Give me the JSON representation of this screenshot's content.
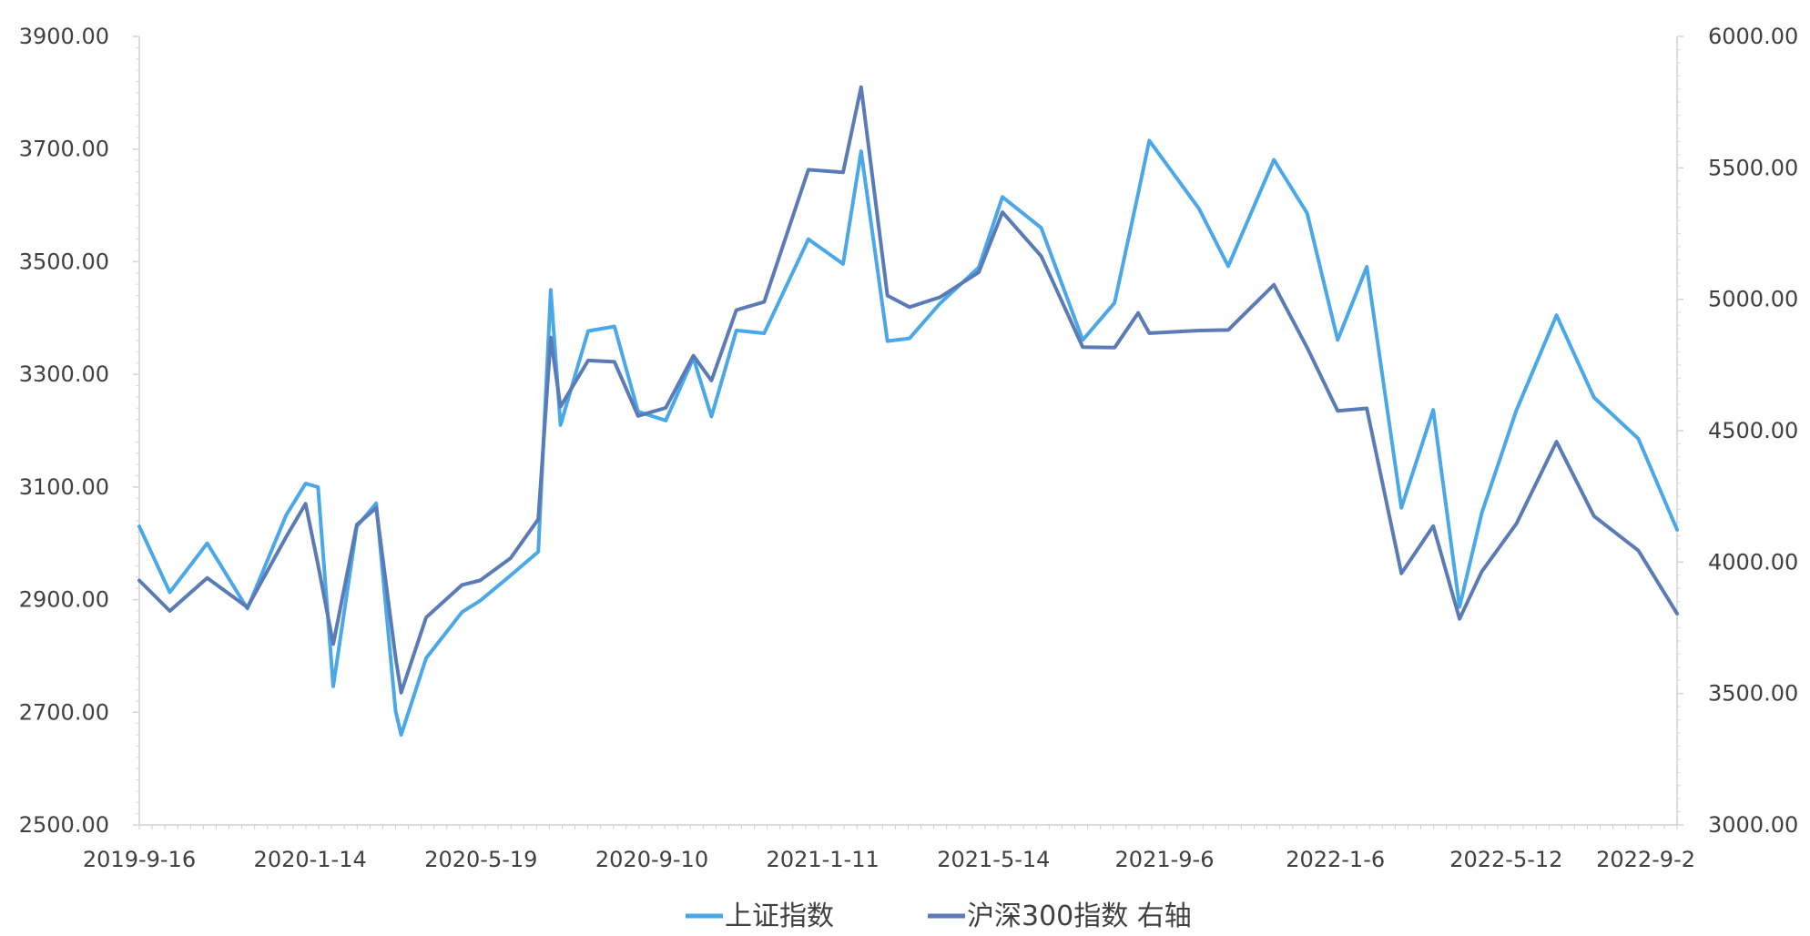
{
  "chart_data": {
    "type": "line",
    "x_labels": [
      "2019-9-16",
      "2020-1-14",
      "2020-5-19",
      "2020-9-10",
      "2021-1-11",
      "2021-5-14",
      "2021-9-6",
      "2022-1-6",
      "2022-5-12",
      "2022-9-2"
    ],
    "y_left": {
      "min": 2500,
      "max": 3900,
      "ticks": [
        "3900.00",
        "3700.00",
        "3500.00",
        "3300.00",
        "3100.00",
        "2900.00",
        "2700.00",
        "2500.00"
      ]
    },
    "y_right": {
      "min": 3000,
      "max": 6000,
      "ticks": [
        "6000.00",
        "5500.00",
        "5000.00",
        "4500.00",
        "4000.00",
        "3500.00",
        "3000.00"
      ]
    },
    "x_range": [
      "2019-09-16",
      "2022-09-30"
    ],
    "grid": false,
    "legend_position": "bottom",
    "series": [
      {
        "name": "上证指数",
        "axis": "left",
        "color": "#4aa8e8",
        "points": [
          [
            "2019-09-16",
            3030
          ],
          [
            "2019-10-08",
            2913
          ],
          [
            "2019-11-04",
            3000
          ],
          [
            "2019-12-03",
            2884
          ],
          [
            "2019-12-31",
            3050
          ],
          [
            "2020-01-14",
            3106
          ],
          [
            "2020-01-23",
            3100
          ],
          [
            "2020-02-03",
            2746
          ],
          [
            "2020-02-20",
            3030
          ],
          [
            "2020-03-05",
            3071
          ],
          [
            "2020-03-19",
            2702
          ],
          [
            "2020-03-23",
            2660
          ],
          [
            "2020-04-10",
            2796
          ],
          [
            "2020-05-06",
            2878
          ],
          [
            "2020-05-19",
            2898
          ],
          [
            "2020-06-10",
            2943
          ],
          [
            "2020-06-30",
            2985
          ],
          [
            "2020-07-09",
            3450
          ],
          [
            "2020-07-16",
            3210
          ],
          [
            "2020-08-05",
            3377
          ],
          [
            "2020-08-24",
            3385
          ],
          [
            "2020-09-10",
            3234
          ],
          [
            "2020-09-30",
            3218
          ],
          [
            "2020-10-20",
            3329
          ],
          [
            "2020-11-02",
            3225
          ],
          [
            "2020-11-20",
            3378
          ],
          [
            "2020-12-10",
            3373
          ],
          [
            "2021-01-11",
            3540
          ],
          [
            "2021-02-05",
            3496
          ],
          [
            "2021-02-18",
            3696
          ],
          [
            "2021-03-09",
            3359
          ],
          [
            "2021-03-25",
            3364
          ],
          [
            "2021-04-16",
            3426
          ],
          [
            "2021-05-14",
            3490
          ],
          [
            "2021-05-31",
            3615
          ],
          [
            "2021-06-28",
            3560
          ],
          [
            "2021-07-28",
            3361
          ],
          [
            "2021-08-20",
            3427
          ],
          [
            "2021-09-06",
            3621
          ],
          [
            "2021-09-14",
            3715
          ],
          [
            "2021-10-20",
            3594
          ],
          [
            "2021-11-10",
            3492
          ],
          [
            "2021-12-13",
            3681
          ],
          [
            "2022-01-06",
            3586
          ],
          [
            "2022-01-28",
            3361
          ],
          [
            "2022-02-18",
            3491
          ],
          [
            "2022-03-15",
            3063
          ],
          [
            "2022-04-07",
            3237
          ],
          [
            "2022-04-26",
            2887
          ],
          [
            "2022-05-12",
            3054
          ],
          [
            "2022-06-06",
            3236
          ],
          [
            "2022-07-05",
            3405
          ],
          [
            "2022-08-01",
            3259
          ],
          [
            "2022-09-02",
            3186
          ],
          [
            "2022-09-30",
            3024
          ]
        ]
      },
      {
        "name": "沪深300指数 右轴",
        "axis": "right",
        "color": "#5a7bb5",
        "points": [
          [
            "2019-09-16",
            3930
          ],
          [
            "2019-10-08",
            3814
          ],
          [
            "2019-11-04",
            3940
          ],
          [
            "2019-12-03",
            3828
          ],
          [
            "2019-12-31",
            4096
          ],
          [
            "2020-01-14",
            4222
          ],
          [
            "2020-01-23",
            3990
          ],
          [
            "2020-02-03",
            3688
          ],
          [
            "2020-02-20",
            4142
          ],
          [
            "2020-03-05",
            4206
          ],
          [
            "2020-03-19",
            3637
          ],
          [
            "2020-03-23",
            3503
          ],
          [
            "2020-04-10",
            3789
          ],
          [
            "2020-05-06",
            3913
          ],
          [
            "2020-05-19",
            3930
          ],
          [
            "2020-06-10",
            4015
          ],
          [
            "2020-06-30",
            4163
          ],
          [
            "2020-07-09",
            4854
          ],
          [
            "2020-07-16",
            4591
          ],
          [
            "2020-08-05",
            4767
          ],
          [
            "2020-08-24",
            4762
          ],
          [
            "2020-09-10",
            4556
          ],
          [
            "2020-09-30",
            4587
          ],
          [
            "2020-10-20",
            4785
          ],
          [
            "2020-11-02",
            4691
          ],
          [
            "2020-11-20",
            4959
          ],
          [
            "2020-12-10",
            4990
          ],
          [
            "2021-01-11",
            5493
          ],
          [
            "2021-02-05",
            5483
          ],
          [
            "2021-02-18",
            5807
          ],
          [
            "2021-03-09",
            5014
          ],
          [
            "2021-03-25",
            4970
          ],
          [
            "2021-04-16",
            5008
          ],
          [
            "2021-05-14",
            5103
          ],
          [
            "2021-05-31",
            5331
          ],
          [
            "2021-06-28",
            5164
          ],
          [
            "2021-07-28",
            4818
          ],
          [
            "2021-08-20",
            4816
          ],
          [
            "2021-09-06",
            4948
          ],
          [
            "2021-09-14",
            4871
          ],
          [
            "2021-10-20",
            4881
          ],
          [
            "2021-11-10",
            4883
          ],
          [
            "2021-12-13",
            5055
          ],
          [
            "2022-01-06",
            4816
          ],
          [
            "2022-01-28",
            4575
          ],
          [
            "2022-02-18",
            4585
          ],
          [
            "2022-03-15",
            3957
          ],
          [
            "2022-04-07",
            4137
          ],
          [
            "2022-04-26",
            3784
          ],
          [
            "2022-05-12",
            3964
          ],
          [
            "2022-06-06",
            4146
          ],
          [
            "2022-07-05",
            4458
          ],
          [
            "2022-08-01",
            4175
          ],
          [
            "2022-09-02",
            4044
          ],
          [
            "2022-09-30",
            3804
          ]
        ]
      }
    ]
  }
}
